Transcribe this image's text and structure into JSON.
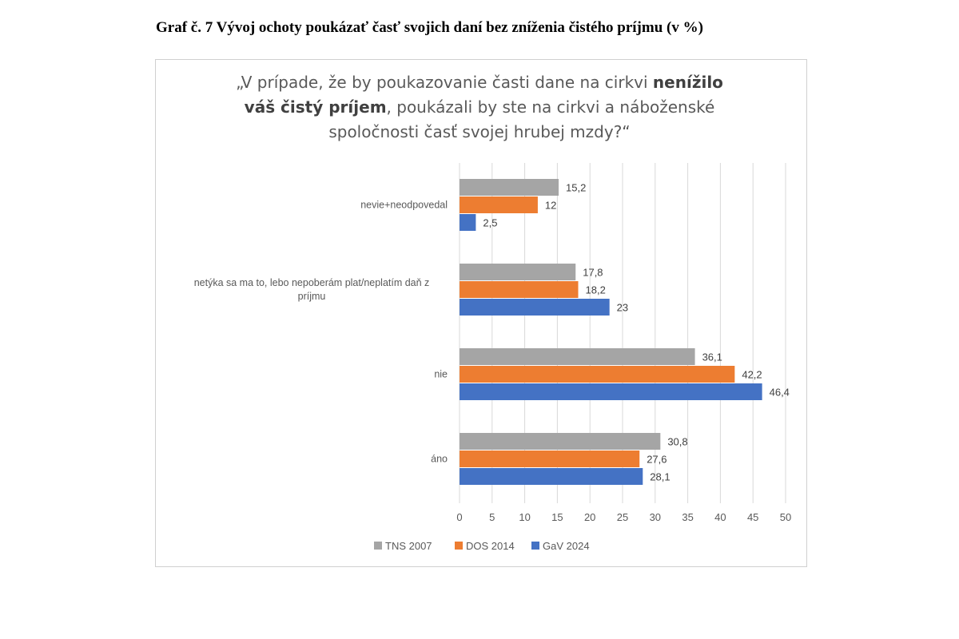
{
  "caption": "Graf č. 7 Vývoj ochoty poukázať časť svojich daní bez zníženia čistého príjmu (v %)",
  "colors": {
    "TNS 2007": "#a5a5a5",
    "DOS 2014": "#ed7d31",
    "GaV 2024": "#4472c4",
    "grid": "#d9d9d9",
    "text": "#595959"
  },
  "chart_data": {
    "type": "bar",
    "orientation": "horizontal",
    "title_parts": {
      "l1a": "„V prípade, že by poukazovanie časti dane na cirkvi ",
      "l1b": "nenížilo",
      "l2a": "váš čistý príjem",
      "l2b": ", poukázali by ste na cirkvi a náboženské",
      "l3": "spoločnosti časť svojej hrubej mzdy?“"
    },
    "categories": [
      [
        "nevie+neodpovedal"
      ],
      [
        "netýka sa ma to, lebo nepoberám plat/neplatím daň z",
        "príjmu"
      ],
      [
        "nie"
      ],
      [
        "áno"
      ]
    ],
    "series": [
      {
        "name": "TNS 2007",
        "values": [
          15.2,
          17.8,
          36.1,
          30.8
        ],
        "labels": [
          "15,2",
          "17,8",
          "36,1",
          "30,8"
        ]
      },
      {
        "name": "DOS 2014",
        "values": [
          12,
          18.2,
          42.2,
          27.6
        ],
        "labels": [
          "12",
          "18,2",
          "42,2",
          "27,6"
        ]
      },
      {
        "name": "GaV 2024",
        "values": [
          2.5,
          23,
          46.4,
          28.1
        ],
        "labels": [
          "2,5",
          "23",
          "46,4",
          "28,1"
        ]
      }
    ],
    "xlim": [
      0,
      50
    ],
    "xticks": [
      0,
      5,
      10,
      15,
      20,
      25,
      30,
      35,
      40,
      45,
      50
    ],
    "legend_position": "bottom",
    "grid": true
  }
}
